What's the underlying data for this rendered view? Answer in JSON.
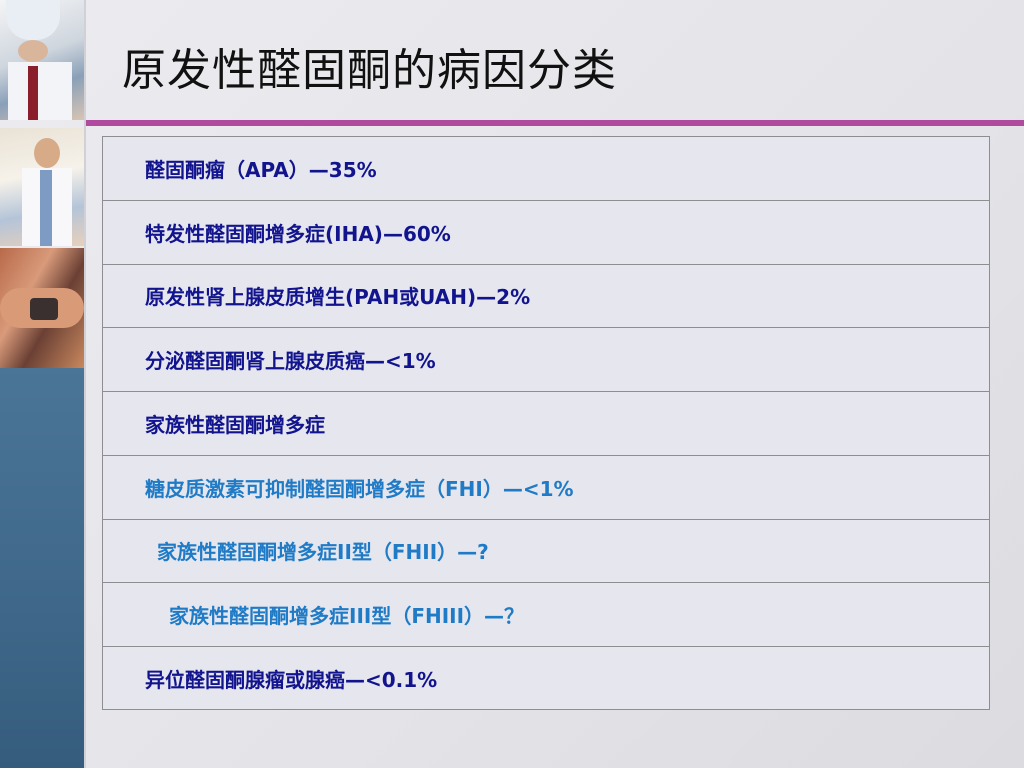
{
  "title": "原发性醛固酮的病因分类",
  "colors": {
    "accent": "#b04a9e",
    "sidebar": "#3e6789",
    "text_dark": "#12148e",
    "text_blue": "#1f7bc6"
  },
  "rows": [
    {
      "text": "醛固酮瘤（APA）—35%"
    },
    {
      "text": "特发性醛固酮增多症(IHA)—60%"
    },
    {
      "text": "原发性肾上腺皮质增生(PAH或UAH)—2%"
    },
    {
      "text": "分泌醛固酮肾上腺皮质癌—<1%"
    },
    {
      "text": "家族性醛固酮增多症"
    },
    {
      "text": "糖皮质激素可抑制醛固酮增多症（FHI）—<1%"
    },
    {
      "text": "家族性醛固酮增多症II型（FHII）—?"
    },
    {
      "text": "家族性醛固酮增多症III型（FHIII）—？"
    },
    {
      "text": "异位醛固酮腺瘤或腺癌—<0.1%"
    }
  ]
}
